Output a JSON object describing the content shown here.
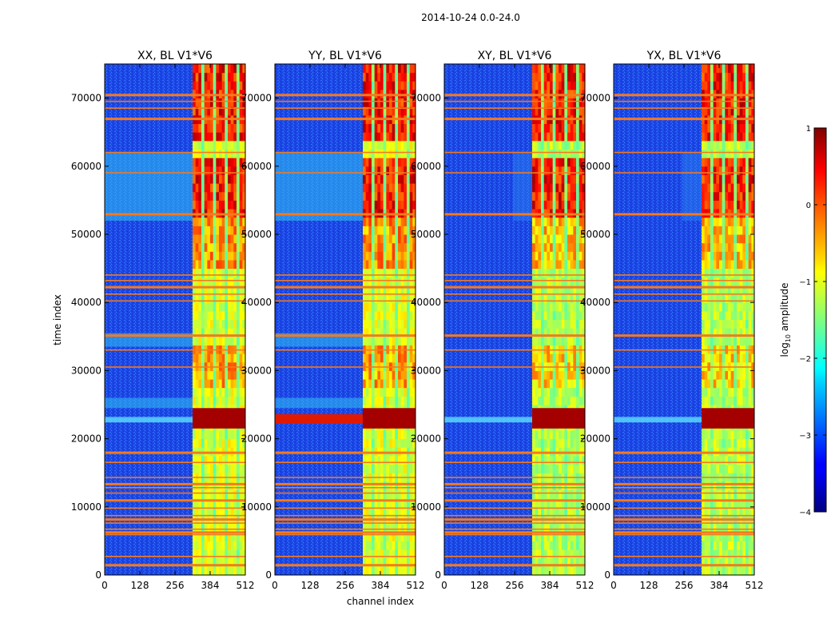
{
  "chart_data": {
    "type": "heatmap",
    "suptitle": "2014-10-24 0.0-24.0",
    "xlabel": "channel index",
    "ylabel": "time index",
    "x_range": [
      0,
      512
    ],
    "y_range": [
      0,
      75000
    ],
    "x_ticks": [
      0,
      128,
      256,
      384,
      512
    ],
    "y_ticks": [
      0,
      10000,
      20000,
      30000,
      40000,
      50000,
      60000,
      70000
    ],
    "panels": [
      {
        "title": "XX, BL V1*V6",
        "polarization": "XX"
      },
      {
        "title": "YY, BL V1*V6",
        "polarization": "YY"
      },
      {
        "title": "XY, BL V1*V6",
        "polarization": "XY"
      },
      {
        "title": "YX, BL V1*V6",
        "polarization": "YX"
      }
    ],
    "colorbar": {
      "label_prefix": "log",
      "label_subscript": "10",
      "label_suffix": " amplitude",
      "ticks": [
        1,
        0,
        -1,
        -2,
        -3,
        -4
      ],
      "tick_labels": [
        "1",
        "0",
        "−1",
        "−2",
        "−3",
        "−4"
      ],
      "min": -4,
      "max": 1,
      "colormap": "jet"
    },
    "flagged_rows_time_index": [
      1500,
      2700,
      5900,
      6300,
      6700,
      7600,
      8200,
      8700,
      9800,
      11000,
      12000,
      12800,
      13400,
      14300,
      16500,
      18000,
      30500,
      33000,
      35200,
      40200,
      41200,
      42300,
      43200,
      44000,
      53000,
      59000,
      62000,
      67000,
      68500,
      69500,
      70500
    ],
    "rfi_channel_band": [
      320,
      512
    ],
    "strong_event_time_range": [
      21500,
      24500
    ],
    "colors": {
      "flag_line": "#f47a1f",
      "background_low": "#1a3fe0",
      "axis": "#000000"
    }
  }
}
